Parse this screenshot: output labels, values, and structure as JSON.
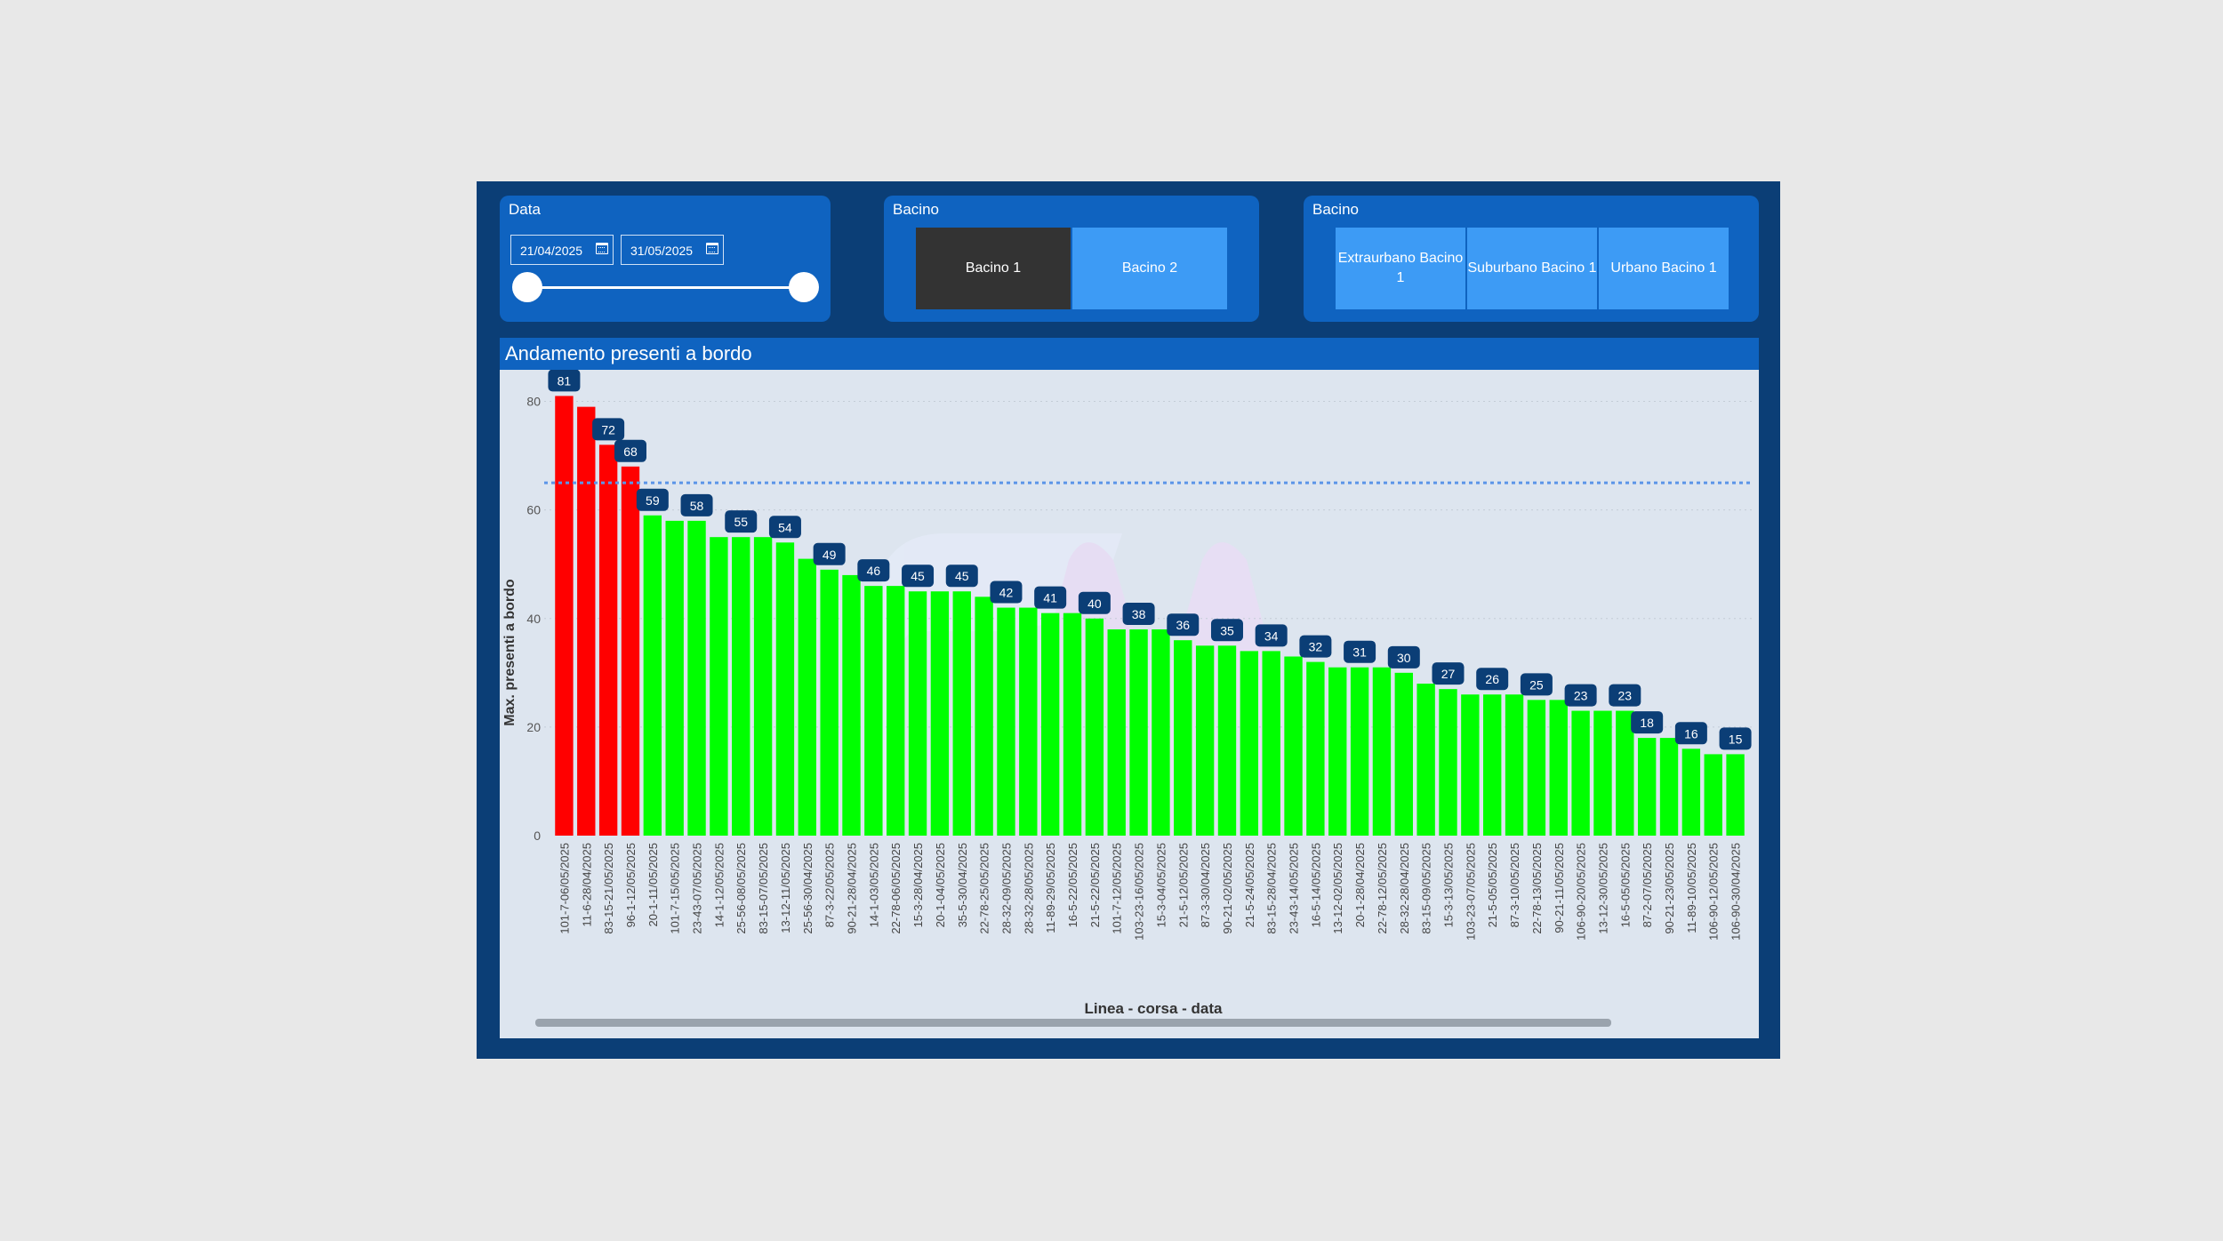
{
  "filters": {
    "date": {
      "title": "Data",
      "start": "21/04/2025",
      "end": "31/05/2025"
    },
    "bacino": {
      "title": "Bacino",
      "options": [
        {
          "label": "Bacino 1",
          "selected": true
        },
        {
          "label": "Bacino 2",
          "selected": false
        }
      ]
    },
    "bacino_linea": {
      "title": "Bacino",
      "options": [
        {
          "label": "Extraurbano Bacino 1"
        },
        {
          "label": "Suburbano Bacino 1"
        },
        {
          "label": "Urbano Bacino 1"
        }
      ]
    }
  },
  "chart": {
    "title": "Andamento presenti a bordo"
  },
  "colors": {
    "over_threshold": "#ff0000",
    "under_threshold": "#00ff00",
    "data_label_bg": "#0b3e76",
    "threshold_line": "#5b95e8",
    "panel": "#0f63c0",
    "frame": "#0b3e76",
    "tile": "#3d9bf5",
    "tile_selected": "#333333"
  },
  "chart_data": {
    "type": "bar",
    "title": "Andamento presenti a bordo",
    "xlabel": "Linea - corsa - data",
    "ylabel": "Max. presenti a bordo",
    "ylim": [
      0,
      85
    ],
    "yticks": [
      0,
      20,
      40,
      60,
      80
    ],
    "threshold": 65,
    "grid": true,
    "categories": [
      "101-7-06/05/2025",
      "11-6-28/04/2025",
      "83-15-21/05/2025",
      "96-1-12/05/2025",
      "20-1-11/05/2025",
      "101-7-15/05/2025",
      "23-43-07/05/2025",
      "14-1-12/05/2025",
      "25-56-08/05/2025",
      "83-15-07/05/2025",
      "13-12-11/05/2025",
      "25-56-30/04/2025",
      "87-3-22/05/2025",
      "90-21-28/04/2025",
      "14-1-03/05/2025",
      "22-78-06/05/2025",
      "15-3-28/04/2025",
      "20-1-04/05/2025",
      "35-5-30/04/2025",
      "22-78-25/05/2025",
      "28-32-09/05/2025",
      "28-32-28/05/2025",
      "11-89-29/05/2025",
      "16-5-22/05/2025",
      "21-5-22/05/2025",
      "101-7-12/05/2025",
      "103-23-16/05/2025",
      "15-3-04/05/2025",
      "21-5-12/05/2025",
      "87-3-30/04/2025",
      "90-21-02/05/2025",
      "21-5-24/05/2025",
      "83-15-28/04/2025",
      "23-43-14/05/2025",
      "16-5-14/05/2025",
      "13-12-02/05/2025",
      "20-1-28/04/2025",
      "22-78-12/05/2025",
      "28-32-28/04/2025",
      "83-15-09/05/2025",
      "15-3-13/05/2025",
      "103-23-07/05/2025",
      "21-5-05/05/2025",
      "87-3-10/05/2025",
      "22-78-13/05/2025",
      "90-21-11/05/2025",
      "106-90-20/05/2025",
      "13-12-30/05/2025",
      "16-5-05/05/2025",
      "87-2-07/05/2025",
      "90-21-23/05/2025",
      "11-89-10/05/2025",
      "106-90-12/05/2025",
      "106-90-30/04/2025"
    ],
    "values": [
      81,
      79,
      72,
      68,
      59,
      58,
      58,
      55,
      55,
      55,
      54,
      51,
      49,
      48,
      46,
      46,
      45,
      45,
      45,
      44,
      42,
      42,
      41,
      41,
      40,
      38,
      38,
      38,
      36,
      35,
      35,
      34,
      34,
      33,
      32,
      31,
      31,
      31,
      30,
      28,
      27,
      26,
      26,
      26,
      25,
      25,
      23,
      23,
      23,
      18,
      18,
      16,
      15,
      15
    ],
    "data_labels": [
      {
        "index": 0,
        "text": "81"
      },
      {
        "index": 2,
        "text": "72"
      },
      {
        "index": 3,
        "text": "68"
      },
      {
        "index": 4,
        "text": "59"
      },
      {
        "index": 6,
        "text": "58"
      },
      {
        "index": 8,
        "text": "55"
      },
      {
        "index": 10,
        "text": "54"
      },
      {
        "index": 12,
        "text": "49"
      },
      {
        "index": 14,
        "text": "46"
      },
      {
        "index": 16,
        "text": "45"
      },
      {
        "index": 18,
        "text": "45"
      },
      {
        "index": 20,
        "text": "42"
      },
      {
        "index": 22,
        "text": "41"
      },
      {
        "index": 24,
        "text": "40"
      },
      {
        "index": 26,
        "text": "38"
      },
      {
        "index": 28,
        "text": "36"
      },
      {
        "index": 30,
        "text": "35"
      },
      {
        "index": 32,
        "text": "34"
      },
      {
        "index": 34,
        "text": "32"
      },
      {
        "index": 36,
        "text": "31"
      },
      {
        "index": 38,
        "text": "30"
      },
      {
        "index": 40,
        "text": "27"
      },
      {
        "index": 42,
        "text": "26"
      },
      {
        "index": 44,
        "text": "25"
      },
      {
        "index": 46,
        "text": "23"
      },
      {
        "index": 48,
        "text": "23"
      },
      {
        "index": 49,
        "text": "18"
      },
      {
        "index": 51,
        "text": "16"
      },
      {
        "index": 53,
        "text": "15"
      }
    ]
  }
}
